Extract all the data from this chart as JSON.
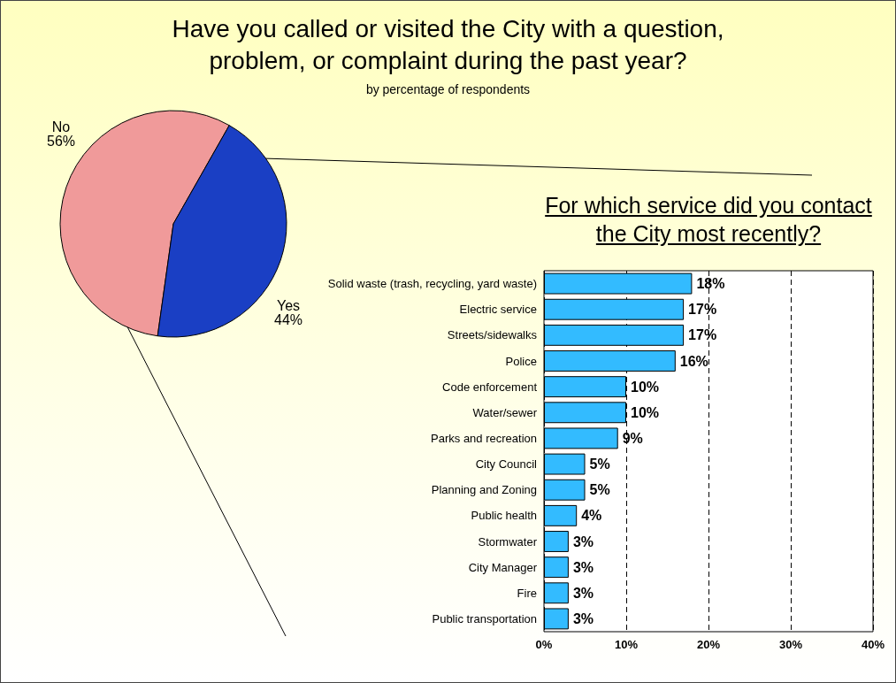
{
  "chart_data": [
    {
      "type": "pie",
      "title": "Have you called or visited the City with a question,\nproblem, or complaint during the past year?",
      "subtitle": "by percentage of respondents",
      "categories": [
        "No",
        "Yes"
      ],
      "values": [
        56,
        44
      ],
      "colors": [
        "#f09a9a",
        "#1a3fc4"
      ],
      "value_labels": [
        "56%",
        "44%"
      ],
      "legend": false
    },
    {
      "type": "bar",
      "orientation": "horizontal",
      "title": "For which service did you contact the City most recently?",
      "categories": [
        "Solid waste (trash, recycling, yard waste)",
        "Electric service",
        "Streets/sidewalks",
        "Police",
        "Code enforcement",
        "Water/sewer",
        "Parks and recreation",
        "City Council",
        "Planning and Zoning",
        "Public health",
        "Stormwater",
        "City Manager",
        "Fire",
        "Public transportation"
      ],
      "values": [
        18,
        17,
        17,
        16,
        10,
        10,
        9,
        5,
        5,
        4,
        3,
        3,
        3,
        3
      ],
      "value_labels": [
        "18%",
        "17%",
        "17%",
        "16%",
        "10%",
        "10%",
        "9%",
        "5%",
        "5%",
        "4%",
        "3%",
        "3%",
        "3%",
        "3%"
      ],
      "color": "#33bbff",
      "xlim": [
        0,
        40
      ],
      "xticks": [
        {
          "value": 0,
          "label": "0%"
        },
        {
          "value": 10,
          "label": "10%"
        },
        {
          "value": 20,
          "label": "20%"
        },
        {
          "value": 30,
          "label": "30%"
        },
        {
          "value": 40,
          "label": "40%"
        }
      ],
      "grid": "x",
      "legend": false
    }
  ]
}
